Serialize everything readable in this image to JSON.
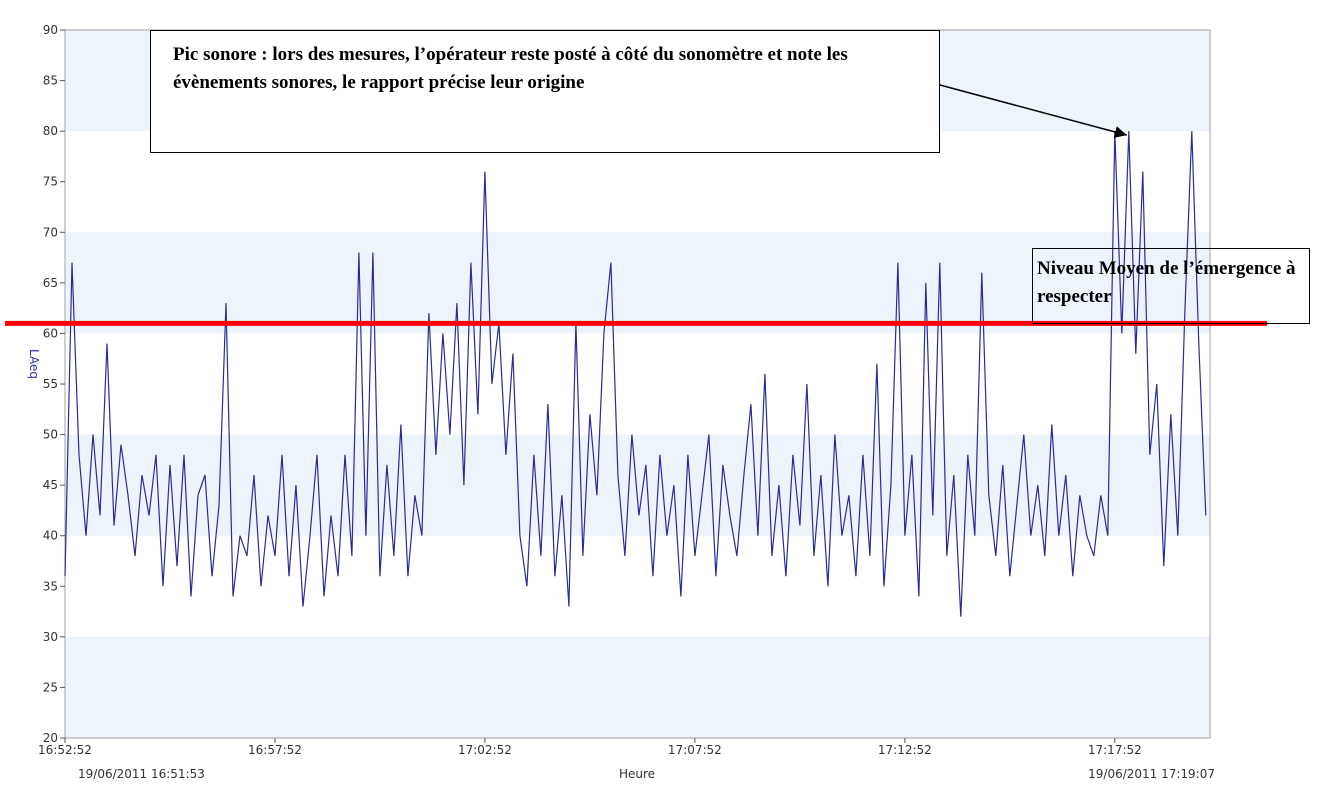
{
  "chart_data": {
    "type": "line",
    "y_label": "LAeq",
    "x_label": "Heure",
    "start_label": "19/06/2011 16:51:53",
    "end_label": "19/06/2011 17:19:07",
    "xlim": [
      0,
      1636
    ],
    "xticks": [
      {
        "value": 0,
        "label": "16:52:52"
      },
      {
        "value": 300,
        "label": "16:57:52"
      },
      {
        "value": 600,
        "label": "17:02:52"
      },
      {
        "value": 900,
        "label": "17:07:52"
      },
      {
        "value": 1200,
        "label": "17:12:52"
      },
      {
        "value": 1500,
        "label": "17:17:52"
      }
    ],
    "ylim": [
      20,
      90
    ],
    "yticks": [
      20,
      25,
      30,
      35,
      40,
      45,
      50,
      55,
      60,
      65,
      70,
      75,
      80,
      85,
      90
    ],
    "bands": true,
    "x": [
      0,
      10,
      20,
      30,
      40,
      50,
      60,
      70,
      80,
      90,
      100,
      110,
      120,
      130,
      140,
      150,
      160,
      170,
      180,
      190,
      200,
      210,
      220,
      230,
      240,
      250,
      260,
      270,
      280,
      290,
      300,
      310,
      320,
      330,
      340,
      350,
      360,
      370,
      380,
      390,
      400,
      410,
      420,
      430,
      440,
      450,
      460,
      470,
      480,
      490,
      500,
      510,
      520,
      530,
      540,
      550,
      560,
      570,
      580,
      590,
      600,
      610,
      620,
      630,
      640,
      650,
      660,
      670,
      680,
      690,
      700,
      710,
      720,
      730,
      740,
      750,
      760,
      770,
      780,
      790,
      800,
      810,
      820,
      830,
      840,
      850,
      860,
      870,
      880,
      890,
      900,
      910,
      920,
      930,
      940,
      950,
      960,
      970,
      980,
      990,
      1000,
      1010,
      1020,
      1030,
      1040,
      1050,
      1060,
      1070,
      1080,
      1090,
      1100,
      1110,
      1120,
      1130,
      1140,
      1150,
      1160,
      1170,
      1180,
      1190,
      1200,
      1210,
      1220,
      1230,
      1240,
      1250,
      1260,
      1270,
      1280,
      1290,
      1300,
      1310,
      1320,
      1330,
      1340,
      1350,
      1360,
      1370,
      1380,
      1390,
      1400,
      1410,
      1420,
      1430,
      1440,
      1450,
      1460,
      1470,
      1480,
      1490,
      1500,
      1510,
      1520,
      1530,
      1540,
      1550,
      1560,
      1570,
      1580,
      1590,
      1600,
      1610,
      1620,
      1630
    ],
    "series": [
      {
        "name": "LAeq",
        "color": "#2b2b96",
        "values": [
          36,
          67,
          48,
          40,
          50,
          42,
          59,
          41,
          49,
          44,
          38,
          46,
          42,
          48,
          35,
          47,
          37,
          48,
          34,
          44,
          46,
          36,
          43,
          63,
          34,
          40,
          38,
          46,
          35,
          42,
          38,
          48,
          36,
          45,
          33,
          40,
          48,
          34,
          42,
          36,
          48,
          38,
          68,
          40,
          68,
          36,
          47,
          38,
          51,
          36,
          44,
          40,
          62,
          48,
          60,
          50,
          63,
          45,
          67,
          52,
          76,
          55,
          61,
          48,
          58,
          40,
          35,
          48,
          38,
          53,
          36,
          44,
          33,
          61,
          38,
          52,
          44,
          60,
          67,
          46,
          38,
          50,
          42,
          47,
          36,
          48,
          40,
          45,
          34,
          48,
          38,
          44,
          50,
          36,
          47,
          42,
          38,
          46,
          53,
          40,
          56,
          38,
          45,
          36,
          48,
          41,
          55,
          38,
          46,
          35,
          50,
          40,
          44,
          36,
          48,
          38,
          57,
          35,
          45,
          67,
          40,
          48,
          34,
          65,
          42,
          67,
          38,
          46,
          32,
          48,
          40,
          66,
          44,
          38,
          47,
          36,
          43,
          50,
          40,
          45,
          38,
          51,
          40,
          46,
          36,
          44,
          40,
          38,
          44,
          40,
          80,
          60,
          80,
          58,
          76,
          48,
          55,
          37,
          52,
          40,
          62,
          80,
          59,
          42
        ]
      }
    ],
    "reference_line": {
      "value": 61,
      "color": "#ff0000",
      "label": "Niveau Moyen de l’émergence à respecter"
    },
    "annotation": {
      "text": "Pic sonore : lors des mesures, l’opérateur reste posté à côté du sonomètre et note les évènements sonores, le rapport précise leur origine",
      "target": [
        1500,
        80
      ]
    }
  }
}
